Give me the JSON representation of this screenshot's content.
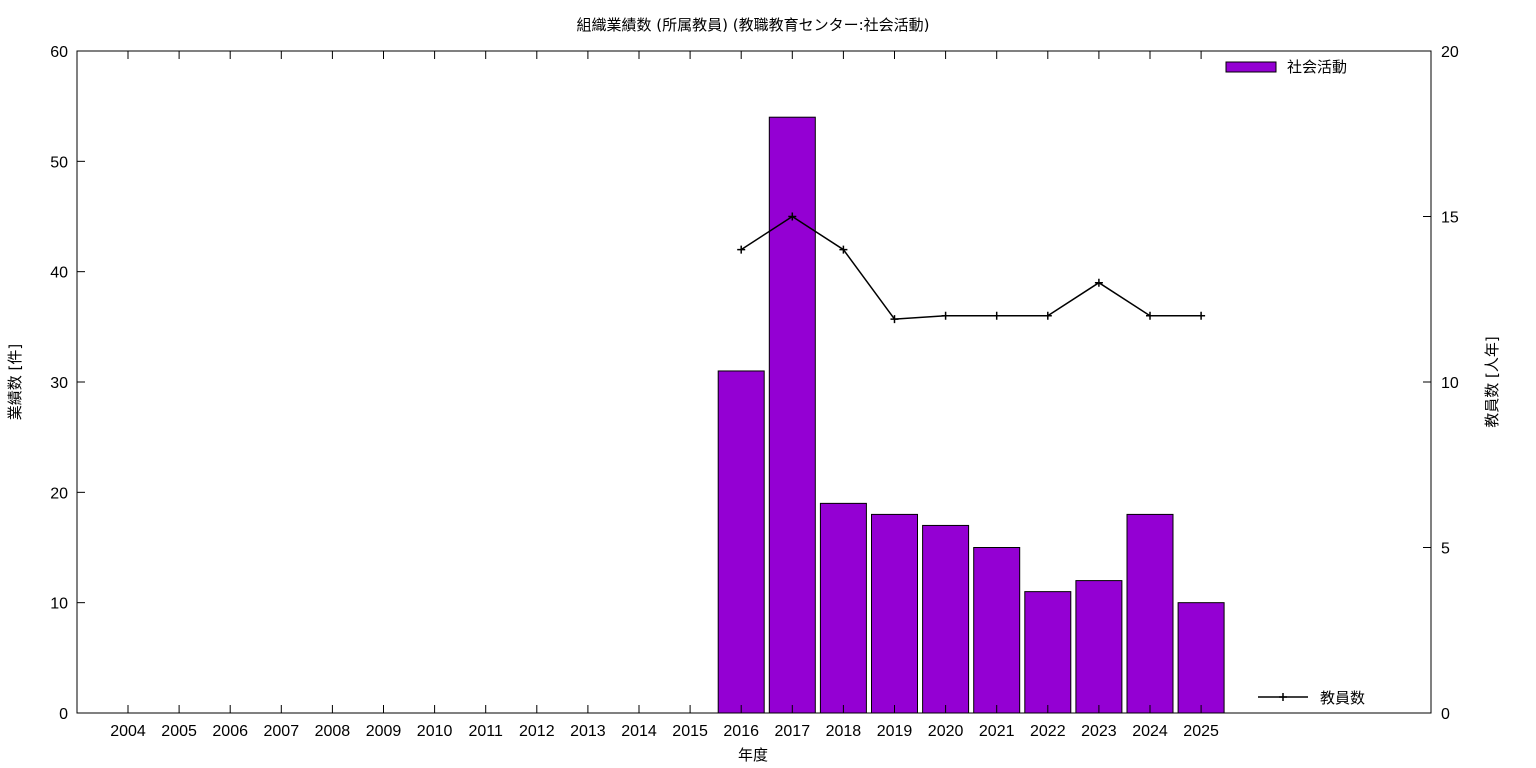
{
  "chart_data": {
    "type": "bar",
    "title": "組織業績数 (所属教員) (教職教育センター:社会活動)",
    "xlabel": "年度",
    "ylabel": "業績数 [件]",
    "y2label": "教員数 [人年]",
    "categories": [
      "2004",
      "2005",
      "2006",
      "2007",
      "2008",
      "2009",
      "2010",
      "2011",
      "2012",
      "2013",
      "2014",
      "2015",
      "2016",
      "2017",
      "2018",
      "2019",
      "2020",
      "2021",
      "2022",
      "2023",
      "2024",
      "2025"
    ],
    "ylim": [
      0,
      60
    ],
    "y2lim": [
      0,
      20
    ],
    "yticks": [
      0,
      10,
      20,
      30,
      40,
      50,
      60
    ],
    "y2ticks": [
      0,
      5,
      10,
      15,
      20
    ],
    "grid": false,
    "series": [
      {
        "name": "社会活動",
        "type": "bar",
        "axis": "left",
        "color": "#9400d3",
        "values": [
          null,
          null,
          null,
          null,
          null,
          null,
          null,
          null,
          null,
          null,
          null,
          null,
          31,
          54,
          19,
          18,
          17,
          15,
          11,
          12,
          18,
          10
        ]
      },
      {
        "name": "教員数",
        "type": "line",
        "axis": "right",
        "color": "#000000",
        "marker": "plus",
        "values": [
          null,
          null,
          null,
          null,
          null,
          null,
          null,
          null,
          null,
          null,
          null,
          null,
          14,
          15,
          14,
          11.9,
          12,
          12,
          12,
          13,
          12,
          12
        ]
      }
    ],
    "legend": [
      {
        "label": "社会活動",
        "placement": "top-right"
      },
      {
        "label": "教員数",
        "placement": "bottom-right"
      }
    ]
  }
}
